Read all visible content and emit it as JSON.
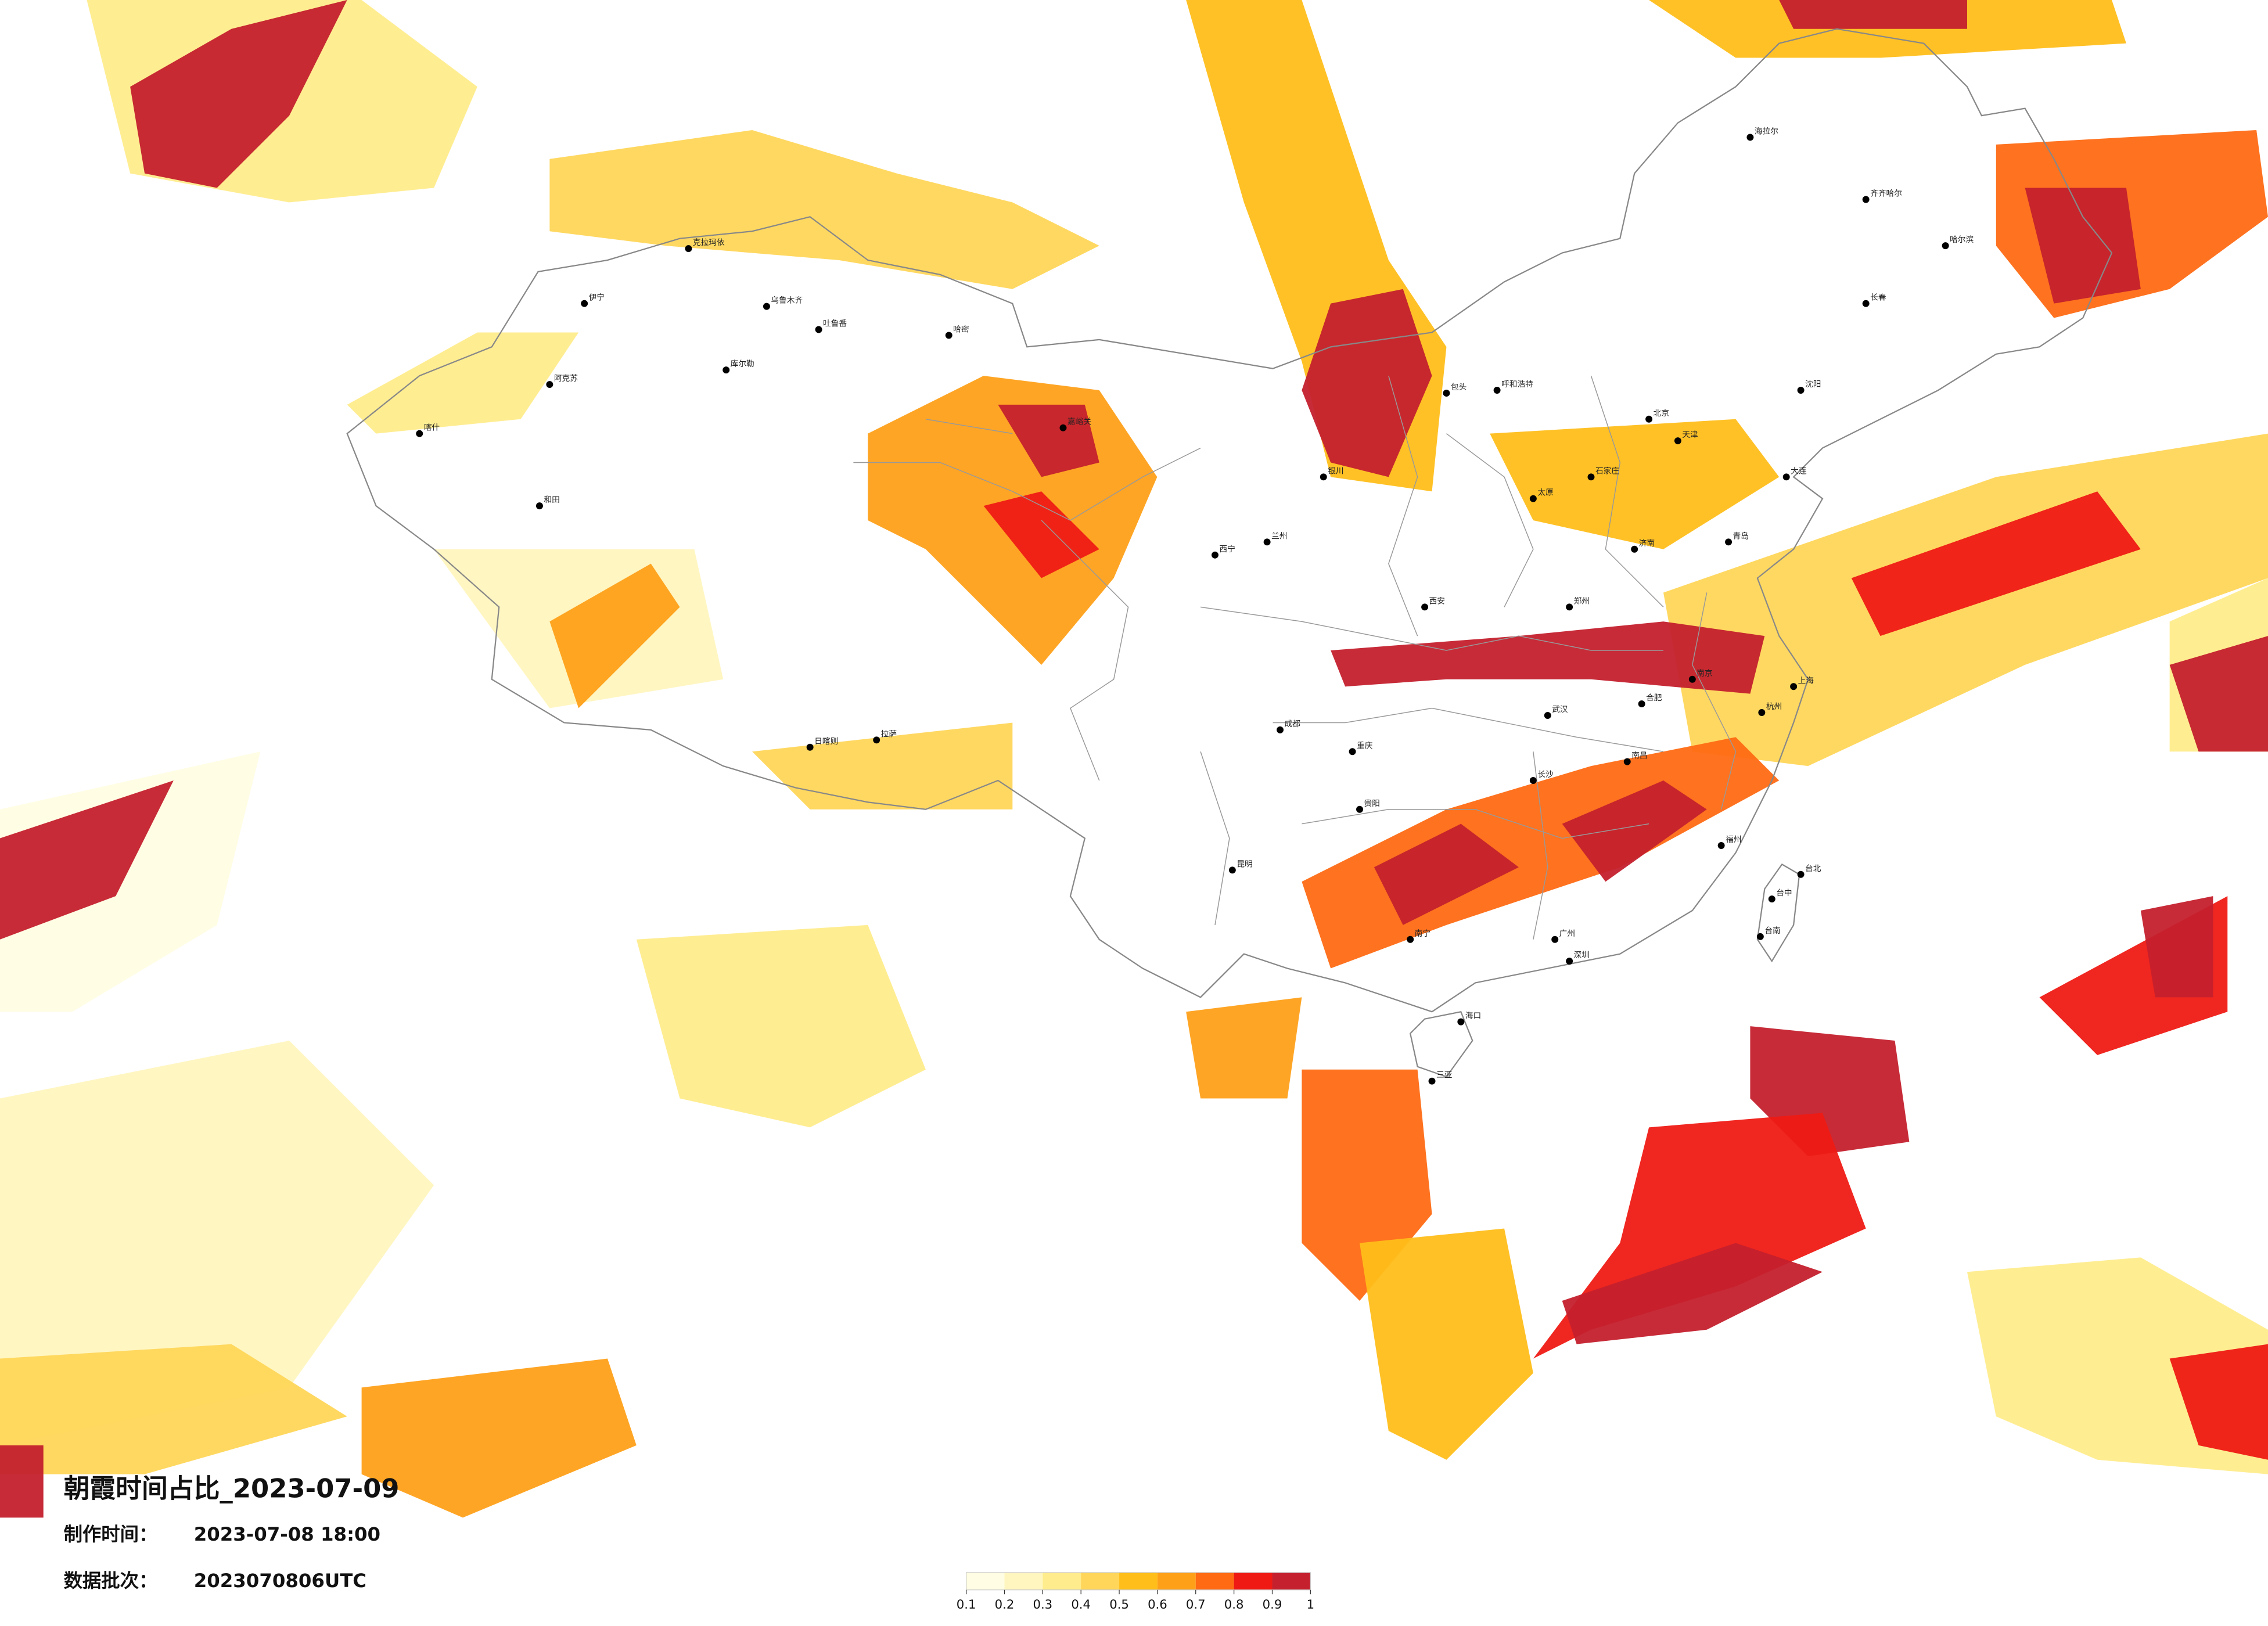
{
  "header": {
    "title": "朝霞时间占比_2023-07-09",
    "made_label": "制作时间：",
    "made_time": "2023-07-08 18:00",
    "batch_label": "数据批次：",
    "batch": "2023070806UTC"
  },
  "legend": {
    "colors": [
      "#fffde3",
      "#fff6bf",
      "#ffec8c",
      "#ffd659",
      "#ffbe1a",
      "#ffa019",
      "#ff6a13",
      "#ef1a14",
      "#c4202d"
    ],
    "ticks": [
      0.1,
      0.2,
      0.3,
      0.4,
      0.5,
      0.6,
      0.7,
      0.8,
      0.9,
      1
    ]
  },
  "cities": [
    "伊宁",
    "克拉玛依",
    "乌鲁木齐",
    "吐鲁番",
    "哈密",
    "库尔勒",
    "阿克苏",
    "喀什",
    "和田",
    "嘉峪关",
    "西宁",
    "兰州",
    "银川",
    "包头",
    "呼和浩特",
    "拉萨",
    "日喀则",
    "成都",
    "重庆",
    "贵阳",
    "昆明",
    "南宁",
    "广州",
    "深圳",
    "海口",
    "三亚",
    "福州",
    "台北",
    "台中",
    "台南",
    "上海",
    "南京",
    "杭州",
    "合肥",
    "武汉",
    "长沙",
    "南昌",
    "郑州",
    "济南",
    "北京",
    "天津",
    "石家庄",
    "太原",
    "西安",
    "沈阳",
    "长春",
    "哈尔滨",
    "大连",
    "青岛",
    "海拉尔",
    "齐齐哈尔"
  ]
}
